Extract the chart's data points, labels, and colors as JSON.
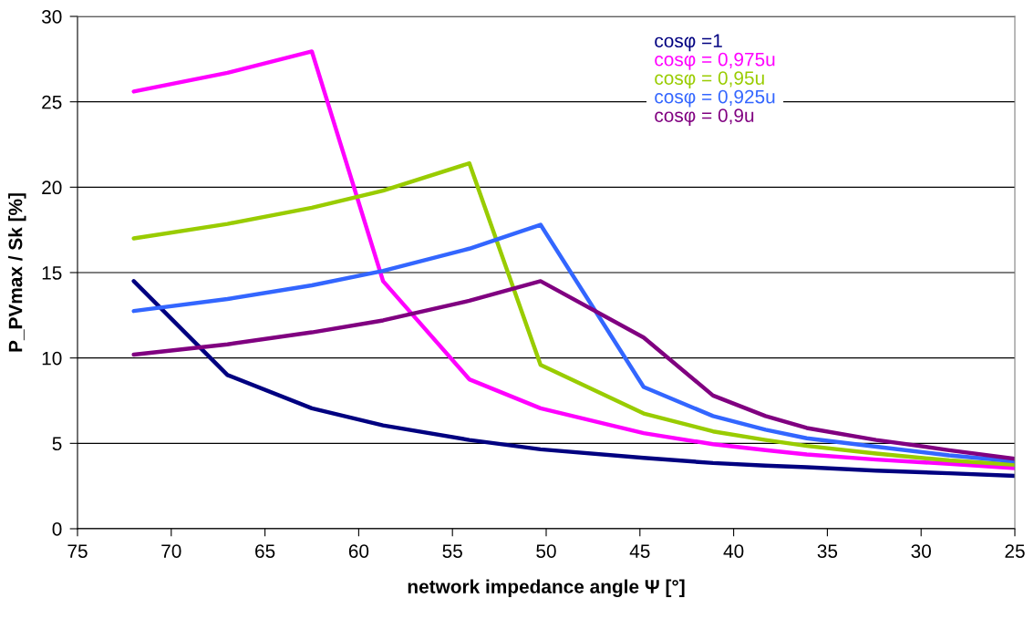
{
  "chart_data": {
    "type": "line",
    "xlabel": "network impedance angle Ψ [°]",
    "ylabel": "P_PVmax / Sk [%]",
    "x": [
      72,
      67,
      62.5,
      58.7,
      54.1,
      50.3,
      44.8,
      41.1,
      38.3,
      36.1,
      32.4,
      28.5,
      25
    ],
    "xlim": [
      75,
      25
    ],
    "xticks": [
      75,
      70,
      65,
      60,
      55,
      50,
      45,
      40,
      35,
      30,
      25
    ],
    "ylim": [
      0,
      30
    ],
    "yticks": [
      0,
      5,
      10,
      15,
      20,
      25,
      30
    ],
    "grid": "y",
    "legend": "top",
    "marker": "none",
    "line_style": "solid",
    "series": [
      {
        "name": "cosφ =1",
        "color": "#000080",
        "values": [
          14.5,
          9.0,
          7.05,
          6.05,
          5.2,
          4.65,
          4.15,
          3.85,
          3.7,
          3.6,
          3.4,
          3.25,
          3.1
        ]
      },
      {
        "name": "cosφ = 0,975u",
        "color": "#ff00ff",
        "values": [
          25.6,
          26.7,
          27.95,
          14.5,
          8.75,
          7.05,
          5.6,
          4.95,
          4.6,
          4.35,
          4.05,
          3.8,
          3.55
        ]
      },
      {
        "name": "cosφ = 0,95u",
        "color": "#99cc00",
        "values": [
          17.0,
          17.85,
          18.8,
          19.8,
          21.4,
          9.6,
          6.75,
          5.7,
          5.2,
          4.85,
          4.4,
          4.0,
          3.75
        ]
      },
      {
        "name": "cosφ = 0,925u",
        "color": "#3366ff",
        "values": [
          12.75,
          13.45,
          14.25,
          15.1,
          16.4,
          17.8,
          8.3,
          6.6,
          5.8,
          5.3,
          4.8,
          4.3,
          3.95
        ]
      },
      {
        "name": "cosφ = 0,9u",
        "color": "#800080",
        "values": [
          10.2,
          10.8,
          11.5,
          12.2,
          13.35,
          14.5,
          11.2,
          7.8,
          6.6,
          5.9,
          5.2,
          4.6,
          4.1
        ]
      }
    ]
  }
}
